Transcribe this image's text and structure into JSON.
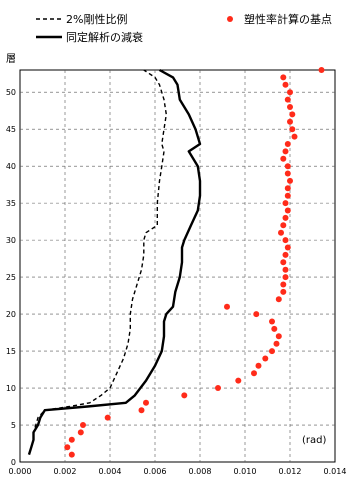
{
  "chart_data": {
    "type": "line",
    "ylabel": "層",
    "unit_label": "(rad)",
    "xlim": [
      0,
      0.014
    ],
    "ylim": [
      0,
      53
    ],
    "x_ticks": [
      "0.000",
      "0.002",
      "0.004",
      "0.006",
      "0.008",
      "0.010",
      "0.012",
      "0.014"
    ],
    "y_ticks": [
      "0",
      "5",
      "10",
      "15",
      "20",
      "25",
      "30",
      "35",
      "40",
      "45",
      "50"
    ],
    "legend": [
      {
        "label": "2%剛性比例",
        "style": "dashed"
      },
      {
        "label": "同定解析の減衰",
        "style": "solid"
      },
      {
        "label": "塑性率計算の基点",
        "style": "marker"
      }
    ],
    "colors": {
      "dashed": "#000000",
      "solid": "#000000",
      "marker": "#ff2b1a"
    },
    "series": [
      {
        "name": "2%剛性比例",
        "style": "dashed",
        "points": [
          [
            0.0004,
            1
          ],
          [
            0.0005,
            2
          ],
          [
            0.0006,
            3
          ],
          [
            0.0006,
            4
          ],
          [
            0.0007,
            5
          ],
          [
            0.0008,
            6
          ],
          [
            0.0011,
            7
          ],
          [
            0.0022,
            7.5
          ],
          [
            0.0031,
            8
          ],
          [
            0.0036,
            9
          ],
          [
            0.004,
            10
          ],
          [
            0.0043,
            12
          ],
          [
            0.0046,
            14
          ],
          [
            0.0048,
            16
          ],
          [
            0.0049,
            18
          ],
          [
            0.0049,
            20
          ],
          [
            0.005,
            22
          ],
          [
            0.0052,
            24
          ],
          [
            0.0054,
            26
          ],
          [
            0.0055,
            28
          ],
          [
            0.0055,
            30
          ],
          [
            0.0056,
            31
          ],
          [
            0.0061,
            32
          ],
          [
            0.0061,
            35
          ],
          [
            0.0062,
            38
          ],
          [
            0.0063,
            40
          ],
          [
            0.0064,
            42
          ],
          [
            0.0063,
            43
          ],
          [
            0.0064,
            45
          ],
          [
            0.0065,
            47
          ],
          [
            0.0064,
            49
          ],
          [
            0.0062,
            51
          ],
          [
            0.006,
            52
          ],
          [
            0.0055,
            53
          ]
        ]
      },
      {
        "name": "同定解析の減衰",
        "style": "solid",
        "points": [
          [
            0.0004,
            1
          ],
          [
            0.0005,
            2
          ],
          [
            0.0006,
            3
          ],
          [
            0.0006,
            4
          ],
          [
            0.0008,
            5
          ],
          [
            0.0009,
            6
          ],
          [
            0.0011,
            7
          ],
          [
            0.003,
            7.5
          ],
          [
            0.0047,
            8
          ],
          [
            0.0051,
            9
          ],
          [
            0.0056,
            11
          ],
          [
            0.006,
            13
          ],
          [
            0.0063,
            15
          ],
          [
            0.0064,
            17
          ],
          [
            0.0064,
            19
          ],
          [
            0.0065,
            20
          ],
          [
            0.0068,
            21
          ],
          [
            0.0069,
            23
          ],
          [
            0.0071,
            25
          ],
          [
            0.0072,
            27
          ],
          [
            0.0072,
            29
          ],
          [
            0.0073,
            30
          ],
          [
            0.0076,
            32
          ],
          [
            0.0079,
            34
          ],
          [
            0.008,
            36
          ],
          [
            0.008,
            38
          ],
          [
            0.0079,
            40
          ],
          [
            0.0075,
            42
          ],
          [
            0.008,
            43
          ],
          [
            0.0078,
            45
          ],
          [
            0.0075,
            47
          ],
          [
            0.0071,
            49
          ],
          [
            0.007,
            51
          ],
          [
            0.0068,
            52
          ],
          [
            0.0062,
            53
          ]
        ]
      }
    ],
    "markers": [
      [
        0.0134,
        53
      ],
      [
        0.0117,
        52
      ],
      [
        0.0118,
        51
      ],
      [
        0.012,
        50
      ],
      [
        0.0119,
        49
      ],
      [
        0.012,
        48
      ],
      [
        0.0121,
        47
      ],
      [
        0.012,
        46
      ],
      [
        0.0121,
        45
      ],
      [
        0.0122,
        44
      ],
      [
        0.0119,
        43
      ],
      [
        0.0118,
        42
      ],
      [
        0.0117,
        41
      ],
      [
        0.0119,
        40
      ],
      [
        0.0119,
        39
      ],
      [
        0.012,
        38
      ],
      [
        0.0119,
        37
      ],
      [
        0.0119,
        36
      ],
      [
        0.0118,
        35
      ],
      [
        0.0119,
        34
      ],
      [
        0.0118,
        33
      ],
      [
        0.0117,
        32
      ],
      [
        0.0116,
        31
      ],
      [
        0.0118,
        30
      ],
      [
        0.0119,
        29
      ],
      [
        0.0118,
        28
      ],
      [
        0.0117,
        27
      ],
      [
        0.0118,
        26
      ],
      [
        0.0118,
        25
      ],
      [
        0.0117,
        24
      ],
      [
        0.0117,
        23
      ],
      [
        0.0115,
        22
      ],
      [
        0.0092,
        21
      ],
      [
        0.0105,
        20
      ],
      [
        0.0112,
        19
      ],
      [
        0.0113,
        18
      ],
      [
        0.0115,
        17
      ],
      [
        0.0114,
        16
      ],
      [
        0.0112,
        15
      ],
      [
        0.0109,
        14
      ],
      [
        0.0106,
        13
      ],
      [
        0.0104,
        12
      ],
      [
        0.0097,
        11
      ],
      [
        0.0088,
        10
      ],
      [
        0.0073,
        9
      ],
      [
        0.0056,
        8
      ],
      [
        0.0054,
        7
      ],
      [
        0.0039,
        6
      ],
      [
        0.0028,
        5
      ],
      [
        0.0027,
        4
      ],
      [
        0.0023,
        3
      ],
      [
        0.0021,
        2
      ],
      [
        0.0023,
        1
      ]
    ]
  }
}
